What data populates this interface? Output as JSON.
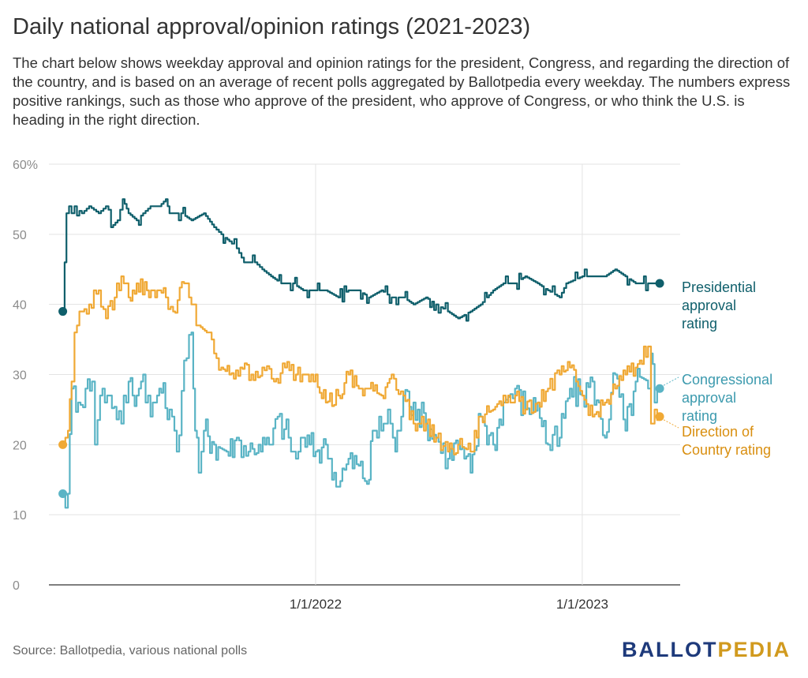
{
  "title": "Daily national approval/opinion ratings (2021-2023)",
  "subtitle": "The chart below shows weekday approval and opinion ratings for the president, Congress, and regarding the direction of the country, and is based on an average of recent polls aggregated by Ballotpedia every weekday. The numbers express positive rankings, such as those who approve of the president, who approve of Congress, or who think the U.S. is heading in the right direction.",
  "source": "Source: Ballotpedia, various national polls",
  "logo": {
    "part1": "BALLOT",
    "part2": "PEDIA"
  },
  "chart_data": {
    "type": "line",
    "x_type": "date",
    "xlim": [
      "2021-01-01",
      "2023-05-15"
    ],
    "ylim": [
      0,
      60
    ],
    "y_ticks": [
      {
        "value": 0,
        "label": "0"
      },
      {
        "value": 10,
        "label": "10"
      },
      {
        "value": 20,
        "label": "20"
      },
      {
        "value": 30,
        "label": "30"
      },
      {
        "value": 40,
        "label": "40"
      },
      {
        "value": 50,
        "label": "50"
      },
      {
        "value": 60,
        "label": "60%"
      }
    ],
    "x_ticks": [
      {
        "value": "2022-01-01",
        "label": "1/1/2022"
      },
      {
        "value": "2023-01-01",
        "label": "1/1/2023"
      }
    ],
    "grid": true,
    "colors": {
      "presidential": "#0f5f6b",
      "congressional": "#5ab4c5",
      "direction": "#f0a935"
    },
    "series": [
      {
        "name": "Presidential approval rating",
        "label_lines": [
          "Presidential",
          "approval",
          "rating"
        ],
        "color": "#0f5f6b",
        "points": [
          [
            "2021-01-20",
            39
          ],
          [
            "2021-01-25",
            53
          ],
          [
            "2021-02-01",
            53
          ],
          [
            "2021-02-05",
            54
          ],
          [
            "2021-02-15",
            53
          ],
          [
            "2021-02-25",
            54
          ],
          [
            "2021-03-10",
            53
          ],
          [
            "2021-03-20",
            54
          ],
          [
            "2021-03-27",
            51
          ],
          [
            "2021-04-05",
            52
          ],
          [
            "2021-04-12",
            55
          ],
          [
            "2021-04-20",
            53
          ],
          [
            "2021-05-01",
            52
          ],
          [
            "2021-05-10",
            53
          ],
          [
            "2021-05-20",
            54
          ],
          [
            "2021-06-01",
            54
          ],
          [
            "2021-06-10",
            55
          ],
          [
            "2021-06-15",
            53
          ],
          [
            "2021-07-01",
            53
          ],
          [
            "2021-07-15",
            52
          ],
          [
            "2021-08-01",
            53
          ],
          [
            "2021-08-15",
            51
          ],
          [
            "2021-08-25",
            50
          ],
          [
            "2021-09-05",
            49
          ],
          [
            "2021-09-15",
            48
          ],
          [
            "2021-09-25",
            46
          ],
          [
            "2021-10-10",
            46
          ],
          [
            "2021-10-20",
            45
          ],
          [
            "2021-11-01",
            44
          ],
          [
            "2021-11-15",
            43
          ],
          [
            "2021-12-01",
            43
          ],
          [
            "2021-12-15",
            42
          ],
          [
            "2022-01-01",
            42
          ],
          [
            "2022-01-15",
            42
          ],
          [
            "2022-02-01",
            41
          ],
          [
            "2022-02-15",
            42
          ],
          [
            "2022-03-01",
            42
          ],
          [
            "2022-03-15",
            41
          ],
          [
            "2022-04-01",
            42
          ],
          [
            "2022-04-15",
            41
          ],
          [
            "2022-05-01",
            41
          ],
          [
            "2022-05-15",
            40
          ],
          [
            "2022-06-01",
            41
          ],
          [
            "2022-06-15",
            40
          ],
          [
            "2022-07-01",
            39
          ],
          [
            "2022-07-15",
            38
          ],
          [
            "2022-08-01",
            39
          ],
          [
            "2022-08-15",
            40
          ],
          [
            "2022-09-01",
            42
          ],
          [
            "2022-09-15",
            43
          ],
          [
            "2022-10-01",
            43
          ],
          [
            "2022-10-15",
            44
          ],
          [
            "2022-11-01",
            43
          ],
          [
            "2022-11-15",
            42
          ],
          [
            "2022-12-01",
            41
          ],
          [
            "2022-12-10",
            43
          ],
          [
            "2023-01-01",
            44
          ],
          [
            "2023-01-20",
            44
          ],
          [
            "2023-02-01",
            44
          ],
          [
            "2023-02-15",
            45
          ],
          [
            "2023-03-01",
            44
          ],
          [
            "2023-03-15",
            43
          ],
          [
            "2023-04-01",
            43
          ],
          [
            "2023-04-17",
            43
          ]
        ]
      },
      {
        "name": "Congressional approval rating",
        "label_lines": [
          "Congressional",
          "approval",
          "rating"
        ],
        "color": "#5ab4c5",
        "points": [
          [
            "2021-01-20",
            13
          ],
          [
            "2021-01-27",
            13
          ],
          [
            "2021-02-01",
            28
          ],
          [
            "2021-02-10",
            26
          ],
          [
            "2021-02-20",
            28
          ],
          [
            "2021-03-01",
            29
          ],
          [
            "2021-03-05",
            20
          ],
          [
            "2021-03-12",
            27
          ],
          [
            "2021-03-25",
            27
          ],
          [
            "2021-04-10",
            23
          ],
          [
            "2021-04-20",
            29
          ],
          [
            "2021-05-01",
            27
          ],
          [
            "2021-05-10",
            30
          ],
          [
            "2021-05-20",
            24
          ],
          [
            "2021-06-01",
            28
          ],
          [
            "2021-06-15",
            25
          ],
          [
            "2021-06-25",
            19
          ],
          [
            "2021-07-05",
            32
          ],
          [
            "2021-07-15",
            36
          ],
          [
            "2021-07-20",
            22
          ],
          [
            "2021-07-25",
            16
          ],
          [
            "2021-08-01",
            22
          ],
          [
            "2021-08-15",
            20
          ],
          [
            "2021-09-01",
            19
          ],
          [
            "2021-09-15",
            21
          ],
          [
            "2021-10-01",
            19
          ],
          [
            "2021-10-15",
            20
          ],
          [
            "2021-11-01",
            20
          ],
          [
            "2021-11-10",
            24
          ],
          [
            "2021-11-25",
            21
          ],
          [
            "2021-12-05",
            18
          ],
          [
            "2021-12-15",
            21
          ],
          [
            "2022-01-01",
            19
          ],
          [
            "2022-01-15",
            20
          ],
          [
            "2022-02-01",
            14
          ],
          [
            "2022-02-15",
            18
          ],
          [
            "2022-03-01",
            17
          ],
          [
            "2022-03-15",
            15
          ],
          [
            "2022-03-20",
            22
          ],
          [
            "2022-04-01",
            22
          ],
          [
            "2022-04-10",
            25
          ],
          [
            "2022-04-20",
            19
          ],
          [
            "2022-05-01",
            27
          ],
          [
            "2022-05-15",
            26
          ],
          [
            "2022-06-01",
            23
          ],
          [
            "2022-06-15",
            21
          ],
          [
            "2022-07-01",
            18
          ],
          [
            "2022-07-15",
            20
          ],
          [
            "2022-08-01",
            16
          ],
          [
            "2022-08-15",
            24
          ],
          [
            "2022-09-01",
            20
          ],
          [
            "2022-09-15",
            26
          ],
          [
            "2022-10-01",
            28
          ],
          [
            "2022-10-15",
            25
          ],
          [
            "2022-11-01",
            26
          ],
          [
            "2022-11-15",
            20
          ],
          [
            "2022-12-01",
            21
          ],
          [
            "2022-12-15",
            28
          ],
          [
            "2023-01-01",
            27
          ],
          [
            "2023-01-15",
            29
          ],
          [
            "2023-02-01",
            21
          ],
          [
            "2023-02-15",
            30
          ],
          [
            "2023-03-01",
            22
          ],
          [
            "2023-03-15",
            29
          ],
          [
            "2023-04-01",
            28
          ],
          [
            "2023-04-05",
            33
          ],
          [
            "2023-04-10",
            26
          ],
          [
            "2023-04-17",
            28
          ]
        ]
      },
      {
        "name": "Direction of Country rating",
        "label_lines": [
          "Direction of",
          "Country rating"
        ],
        "color": "#f0a935",
        "points": [
          [
            "2021-01-20",
            20
          ],
          [
            "2021-01-27",
            22
          ],
          [
            "2021-02-01",
            29
          ],
          [
            "2021-02-05",
            36
          ],
          [
            "2021-02-15",
            39
          ],
          [
            "2021-02-25",
            40
          ],
          [
            "2021-03-10",
            42
          ],
          [
            "2021-03-20",
            38
          ],
          [
            "2021-04-01",
            41
          ],
          [
            "2021-04-10",
            44
          ],
          [
            "2021-04-20",
            41
          ],
          [
            "2021-05-01",
            43
          ],
          [
            "2021-05-15",
            42
          ],
          [
            "2021-06-01",
            42
          ],
          [
            "2021-06-10",
            41
          ],
          [
            "2021-06-20",
            39
          ],
          [
            "2021-07-05",
            43
          ],
          [
            "2021-07-15",
            40
          ],
          [
            "2021-07-25",
            37
          ],
          [
            "2021-08-05",
            36
          ],
          [
            "2021-08-15",
            33
          ],
          [
            "2021-08-25",
            31
          ],
          [
            "2021-09-05",
            30
          ],
          [
            "2021-09-20",
            31
          ],
          [
            "2021-10-05",
            30
          ],
          [
            "2021-10-20",
            31
          ],
          [
            "2021-11-05",
            29
          ],
          [
            "2021-11-20",
            31
          ],
          [
            "2021-12-05",
            30
          ],
          [
            "2021-12-20",
            30
          ],
          [
            "2022-01-01",
            30
          ],
          [
            "2022-01-15",
            26
          ],
          [
            "2022-02-01",
            27
          ],
          [
            "2022-02-15",
            30
          ],
          [
            "2022-03-01",
            28
          ],
          [
            "2022-03-15",
            28
          ],
          [
            "2022-04-01",
            27
          ],
          [
            "2022-04-15",
            30
          ],
          [
            "2022-05-01",
            27
          ],
          [
            "2022-05-15",
            23
          ],
          [
            "2022-06-01",
            23
          ],
          [
            "2022-06-15",
            21
          ],
          [
            "2022-07-01",
            19
          ],
          [
            "2022-07-15",
            20
          ],
          [
            "2022-08-01",
            19
          ],
          [
            "2022-08-15",
            24
          ],
          [
            "2022-09-01",
            25
          ],
          [
            "2022-09-15",
            27
          ],
          [
            "2022-10-01",
            27
          ],
          [
            "2022-10-15",
            25
          ],
          [
            "2022-11-01",
            26
          ],
          [
            "2022-11-15",
            28
          ],
          [
            "2022-12-01",
            30
          ],
          [
            "2022-12-15",
            31
          ],
          [
            "2023-01-01",
            27
          ],
          [
            "2023-01-15",
            24
          ],
          [
            "2023-02-01",
            26
          ],
          [
            "2023-02-15",
            28
          ],
          [
            "2023-03-01",
            30
          ],
          [
            "2023-03-15",
            31
          ],
          [
            "2023-04-01",
            34
          ],
          [
            "2023-04-05",
            23
          ],
          [
            "2023-04-10",
            25
          ],
          [
            "2023-04-17",
            24
          ]
        ]
      }
    ]
  }
}
